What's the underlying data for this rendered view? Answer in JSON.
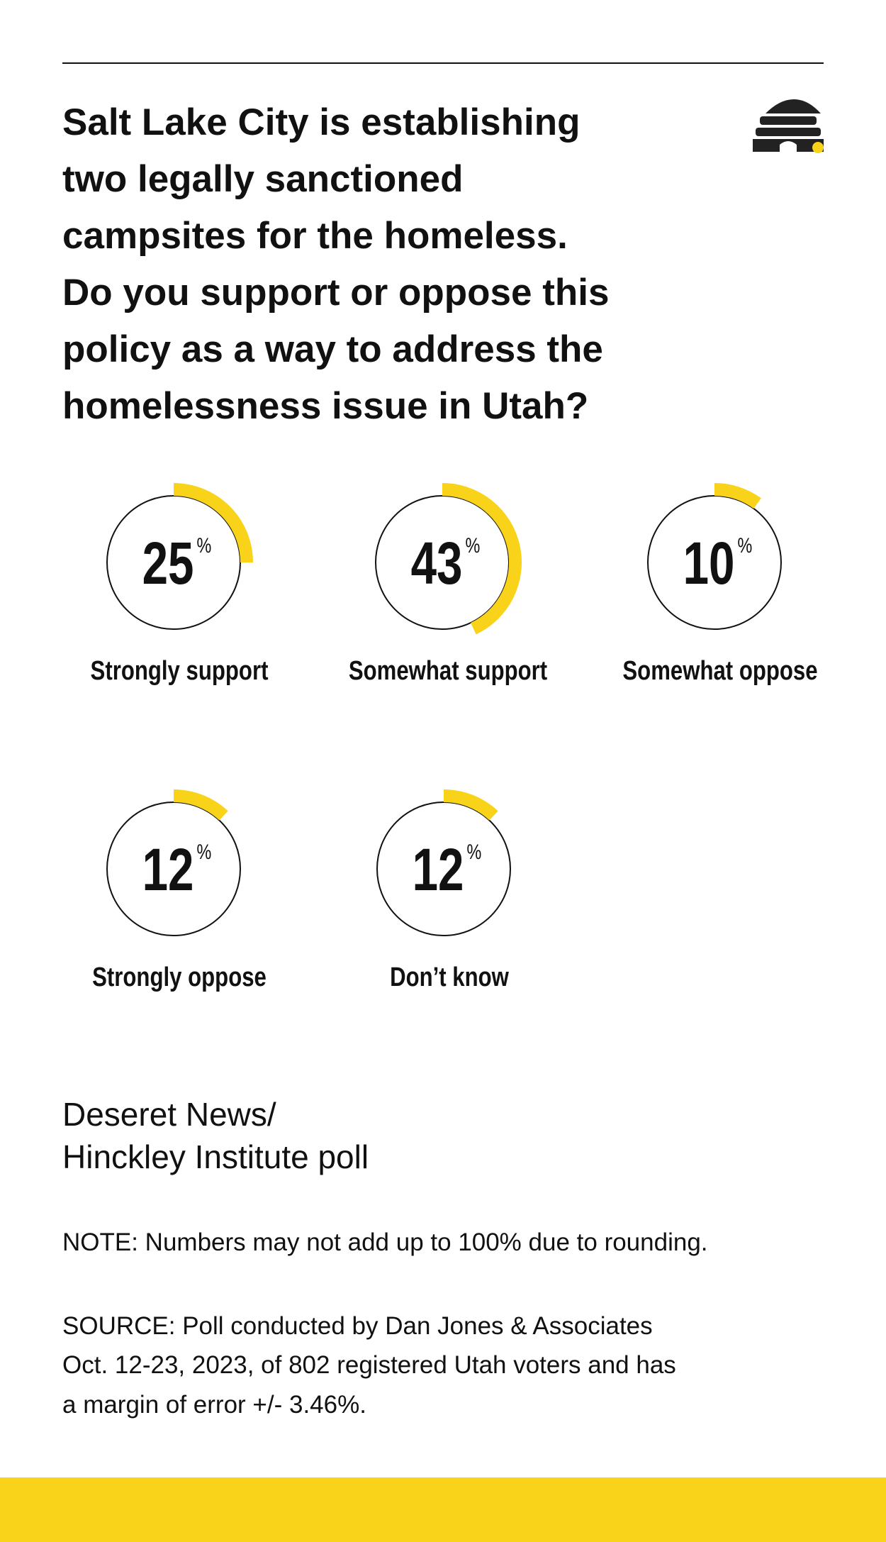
{
  "question": [
    "Salt Lake City is establishing",
    "two legally sanctioned",
    "campsites for the homeless.",
    "Do you support or oppose this",
    "policy as a way to address the",
    "homelessness issue in Utah?"
  ],
  "chart_data": {
    "type": "gauge",
    "categories": [
      "Strongly support",
      "Somewhat support",
      "Somewhat oppose",
      "Strongly oppose",
      "Don’t know"
    ],
    "values": [
      25,
      43,
      10,
      12,
      12
    ],
    "unit": "%",
    "color": "#f9d21a"
  },
  "poll_name": [
    "Deseret News/",
    "Hinckley Institute poll"
  ],
  "note": "NOTE: Numbers may not add up to 100% due to rounding.",
  "source": [
    "SOURCE: Poll conducted by Dan Jones & Associates",
    "Oct. 12-23, 2023, of 802 registered Utah voters and has",
    "a margin of error +/- 3.46%."
  ]
}
